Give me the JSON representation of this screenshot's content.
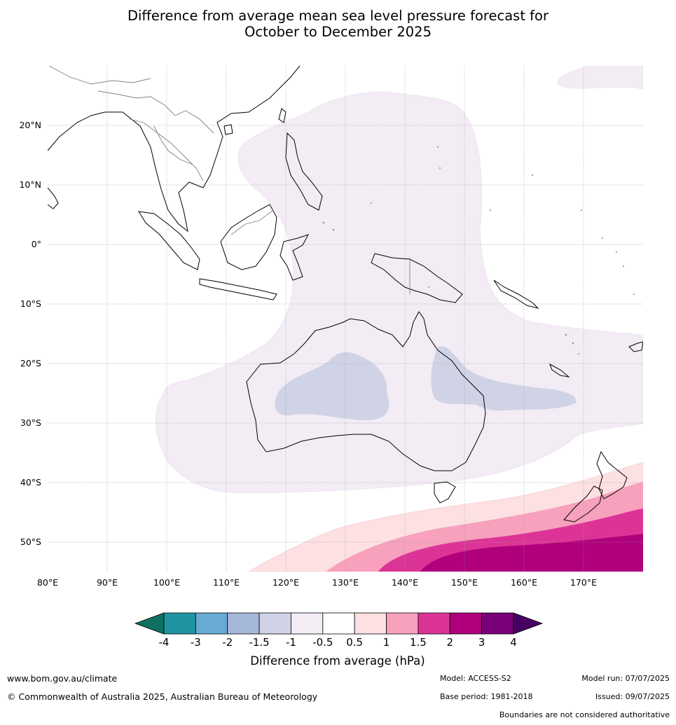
{
  "title": {
    "line1": "Difference from average mean sea level pressure forecast for",
    "line2": "October to December 2025"
  },
  "map": {
    "lat_labels": [
      "20°N",
      "10°N",
      "0°",
      "10°S",
      "20°S",
      "30°S",
      "40°S",
      "50°S"
    ],
    "lon_labels": [
      "80°E",
      "90°E",
      "100°E",
      "110°E",
      "120°E",
      "130°E",
      "140°E",
      "150°E",
      "160°E",
      "170°E"
    ]
  },
  "legend": {
    "ticks": [
      "-4",
      "-3",
      "-2",
      "-1.5",
      "-1",
      "-0.5",
      "0.5",
      "1",
      "1.5",
      "2",
      "3",
      "4"
    ],
    "colors": [
      "#0d7060",
      "#1f94a0",
      "#67aad4",
      "#a6b8da",
      "#d0d3e6",
      "#f3ecf5",
      "#ffffff",
      "#fde0e2",
      "#f7a1bd",
      "#dc3496",
      "#b0007b",
      "#7a0079",
      "#450060"
    ],
    "label": "Difference from average (hPa)"
  },
  "footer": {
    "website": "www.bom.gov.au/climate",
    "copyright": "© Commonwealth of Australia 2025, Australian Bureau of Meteorology",
    "model": "Model: ACCESS-S2",
    "base_period": "Base period: 1981-2018",
    "model_run": "Model run: 07/07/2025",
    "issued": "Issued: 09/07/2025",
    "boundaries": "Boundaries are not considered authoritative"
  }
}
